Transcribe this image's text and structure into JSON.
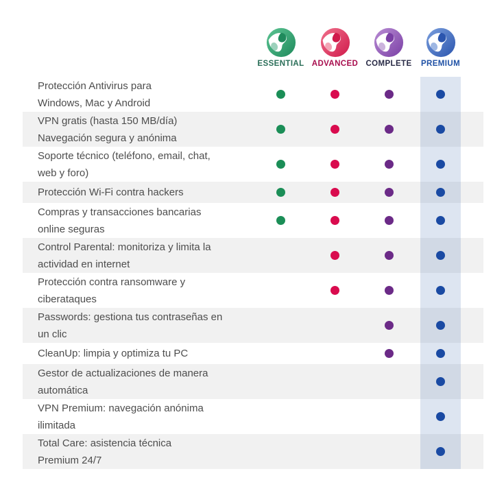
{
  "plans": [
    {
      "name": "ESSENTIAL",
      "label_color": "#2a6e58",
      "dot_color": "#1b8e57",
      "logo": {
        "light": "#5cc493",
        "main": "#3aa478",
        "dark": "#1f8a5c"
      }
    },
    {
      "name": "ADVANCED",
      "label_color": "#a80e4e",
      "dot_color": "#d90b4e",
      "logo": {
        "light": "#f0718c",
        "main": "#e64b6b",
        "dark": "#d01a4b"
      }
    },
    {
      "name": "COMPLETE",
      "label_color": "#282a45",
      "dot_color": "#6b2a87",
      "logo": {
        "light": "#b98dd4",
        "main": "#9a68bb",
        "dark": "#7a3fa5"
      }
    },
    {
      "name": "PREMIUM",
      "label_color": "#1e50a5",
      "dot_color": "#1a4aa3",
      "logo": {
        "light": "#7b9fdd",
        "main": "#4070c8",
        "dark": "#2b55ae"
      },
      "column_highlight": "rgba(30,80,160,0.15)"
    }
  ],
  "features": [
    {
      "lines": [
        "Protección Antivirus para",
        "Windows, Mac y Android"
      ],
      "availability": [
        true,
        true,
        true,
        true
      ]
    },
    {
      "lines": [
        "VPN gratis (hasta 150 MB/día)",
        "Navegación segura y anónima"
      ],
      "availability": [
        true,
        true,
        true,
        true
      ]
    },
    {
      "lines": [
        "Soporte técnico (teléfono, email, chat,",
        "web y foro)"
      ],
      "availability": [
        true,
        true,
        true,
        true
      ]
    },
    {
      "lines": [
        "Protección Wi-Fi contra hackers"
      ],
      "availability": [
        true,
        true,
        true,
        true
      ]
    },
    {
      "lines": [
        "Compras y transacciones bancarias",
        "online seguras"
      ],
      "availability": [
        true,
        true,
        true,
        true
      ]
    },
    {
      "lines": [
        "Control Parental: monitoriza y limita la",
        "actividad en internet"
      ],
      "availability": [
        false,
        true,
        true,
        true
      ]
    },
    {
      "lines": [
        "Protección contra ransomware y",
        "ciberataques"
      ],
      "availability": [
        false,
        true,
        true,
        true
      ]
    },
    {
      "lines": [
        "Passwords: gestiona tus contraseñas en",
        "un clic"
      ],
      "availability": [
        false,
        false,
        true,
        true
      ]
    },
    {
      "lines": [
        "CleanUp: limpia y optimiza tu PC"
      ],
      "availability": [
        false,
        false,
        true,
        true
      ]
    },
    {
      "lines": [
        "Gestor de actualizaciones de manera",
        "automática"
      ],
      "availability": [
        false,
        false,
        false,
        true
      ]
    },
    {
      "lines": [
        "VPN Premium: navegación anónima",
        "ilimitada"
      ],
      "availability": [
        false,
        false,
        false,
        true
      ]
    },
    {
      "lines": [
        "Total Care: asistencia técnica",
        "Premium 24/7"
      ],
      "availability": [
        false,
        false,
        false,
        true
      ]
    }
  ],
  "colors": {
    "row_alt_bg": "#f1f1f1",
    "feature_text": "#4d4d4d",
    "premium_band": "rgba(30,80,160,0.15)"
  }
}
